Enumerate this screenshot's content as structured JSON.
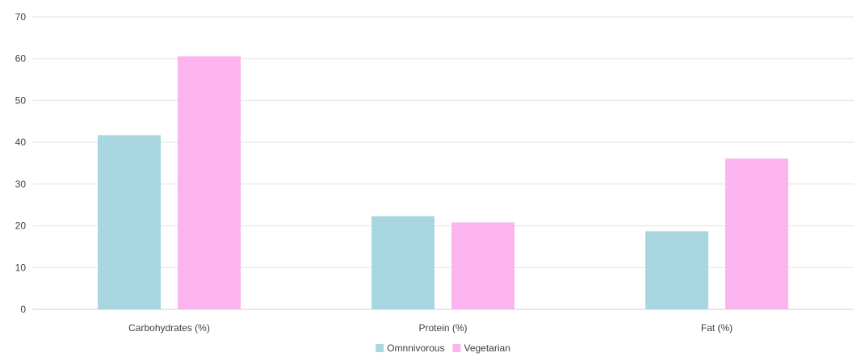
{
  "chart_data": {
    "type": "bar",
    "categories": [
      "Carbohydrates (%)",
      "Protein (%)",
      "Fat (%)"
    ],
    "series": [
      {
        "name": "Omnnivorous",
        "values": [
          41.7,
          22.3,
          18.7
        ],
        "color": "#A8D7E2"
      },
      {
        "name": "Vegetarian",
        "values": [
          60.6,
          20.8,
          36.1
        ],
        "color": "#FBB4EE"
      }
    ],
    "ylim": [
      0,
      70
    ],
    "yticks": [
      0,
      10,
      20,
      30,
      40,
      50,
      60,
      70
    ],
    "grid": true,
    "legend_position": "bottom"
  }
}
